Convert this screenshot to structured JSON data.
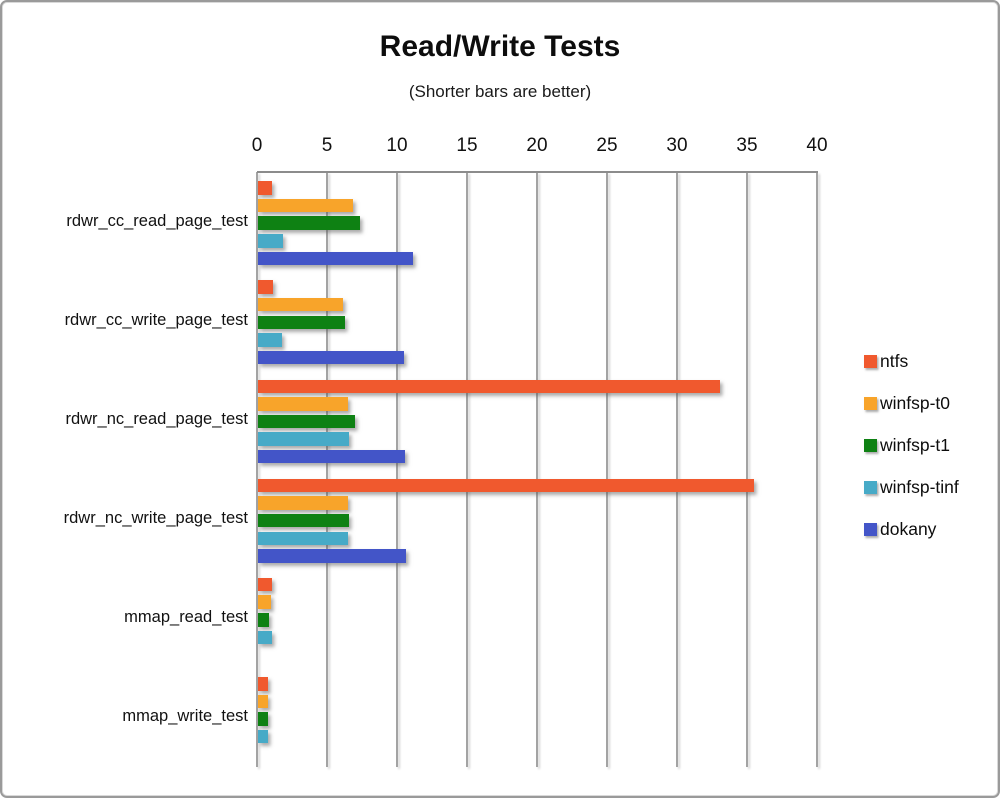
{
  "title": "Read/Write Tests",
  "subtitle": "(Shorter bars are better)",
  "chart_data": {
    "type": "bar",
    "orientation": "horizontal",
    "title": "Read/Write Tests",
    "subtitle": "(Shorter bars are better)",
    "xlabel": "",
    "ylabel": "",
    "xlim": [
      0,
      40
    ],
    "xticks": [
      0,
      5,
      10,
      15,
      20,
      25,
      30,
      35,
      40
    ],
    "grid": true,
    "legend_position": "right",
    "categories": [
      "rdwr_cc_read_page_test",
      "rdwr_cc_write_page_test",
      "rdwr_nc_read_page_test",
      "rdwr_nc_write_page_test",
      "mmap_read_test",
      "mmap_write_test"
    ],
    "series": [
      {
        "name": "ntfs",
        "color": "#F0592E",
        "values": [
          1.0,
          1.1,
          33.0,
          35.4,
          1.0,
          0.7
        ]
      },
      {
        "name": "winfsp-t0",
        "color": "#F8A42A",
        "values": [
          6.8,
          6.1,
          6.4,
          6.4,
          0.9,
          0.7
        ]
      },
      {
        "name": "winfsp-t1",
        "color": "#0E8113",
        "values": [
          7.3,
          6.2,
          6.9,
          6.5,
          0.8,
          0.7
        ]
      },
      {
        "name": "winfsp-tinf",
        "color": "#47AAC7",
        "values": [
          1.8,
          1.7,
          6.5,
          6.4,
          1.0,
          0.7
        ]
      },
      {
        "name": "dokany",
        "color": "#4355C8",
        "values": [
          11.1,
          10.4,
          10.5,
          10.6,
          0,
          0
        ]
      }
    ]
  }
}
